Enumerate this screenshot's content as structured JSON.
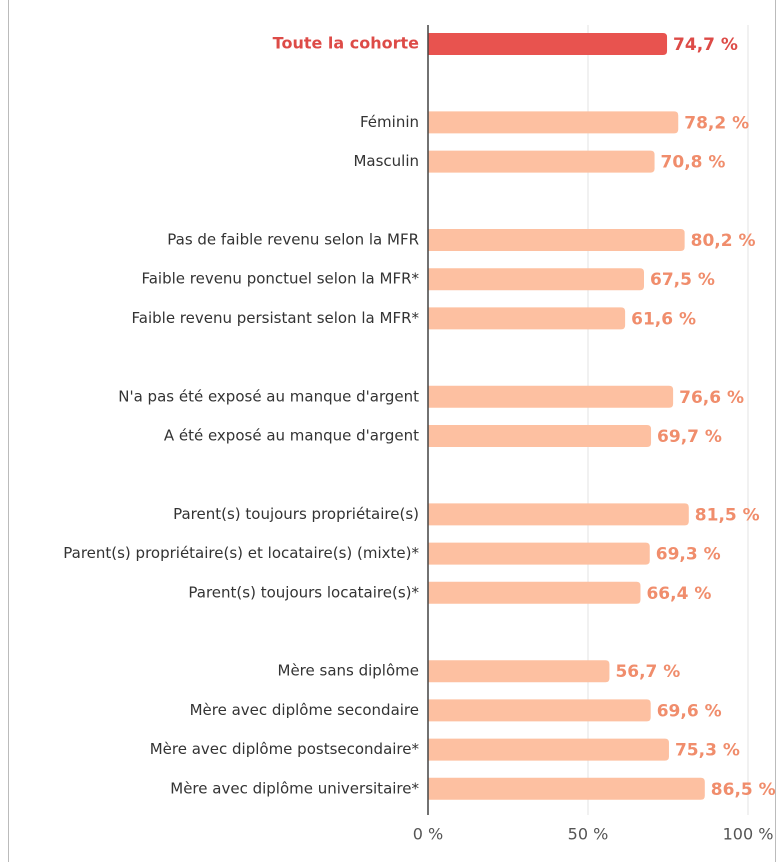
{
  "chart_data": {
    "type": "bar",
    "orientation": "horizontal",
    "categories": [
      "Toute la cohorte",
      null,
      "Féminin",
      "Masculin",
      null,
      "Pas de faible revenu selon la MFR",
      "Faible revenu ponctuel selon la MFR*",
      "Faible revenu persistant selon la MFR*",
      null,
      "N'a pas été exposé au manque d'argent",
      "A été exposé au manque d'argent",
      null,
      "Parent(s) toujours propriétaire(s)",
      "Parent(s) propriétaire(s) et locataire(s) (mixte)*",
      "Parent(s) toujours locataire(s)*",
      null,
      "Mère sans diplôme",
      "Mère avec diplôme secondaire",
      "Mère avec diplôme postsecondaire*",
      "Mère avec diplôme universitaire*"
    ],
    "values": [
      74.7,
      null,
      78.2,
      70.8,
      null,
      80.2,
      67.5,
      61.6,
      null,
      76.6,
      69.7,
      null,
      81.5,
      69.3,
      66.4,
      null,
      56.7,
      69.6,
      75.3,
      86.5
    ],
    "value_labels": [
      "74,7 %",
      null,
      "78,2 %",
      "70,8 %",
      null,
      "80,2 %",
      "67,5 %",
      "61,6 %",
      null,
      "76,6 %",
      "69,7 %",
      null,
      "81,5 %",
      "69,3 %",
      "66,4 %",
      null,
      "56,7 %",
      "69,6 %",
      "75,3 %",
      "86,5 %"
    ],
    "colors": [
      "#e8534f",
      null,
      "#fdc0a1",
      "#fdc0a1",
      null,
      "#fdc0a1",
      "#fdc0a1",
      "#fdc0a1",
      null,
      "#fdc0a1",
      "#fdc0a1",
      null,
      "#fdc0a1",
      "#fdc0a1",
      "#fdc0a1",
      null,
      "#fdc0a1",
      "#fdc0a1",
      "#fdc0a1",
      "#fdc0a1"
    ],
    "label_colors": [
      "#dd4b47",
      null,
      "#f08d6c",
      "#f08d6c",
      null,
      "#f08d6c",
      "#f08d6c",
      "#f08d6c",
      null,
      "#f08d6c",
      "#f08d6c",
      null,
      "#f08d6c",
      "#f08d6c",
      "#f08d6c",
      null,
      "#f08d6c",
      "#f08d6c",
      "#f08d6c",
      "#f08d6c"
    ],
    "xlim": [
      0,
      100
    ],
    "xticks": [
      {
        "value": 0,
        "label": "0 %"
      },
      {
        "value": 50,
        "label": "50 %"
      },
      {
        "value": 100,
        "label": "100 %"
      }
    ],
    "grid": true
  }
}
